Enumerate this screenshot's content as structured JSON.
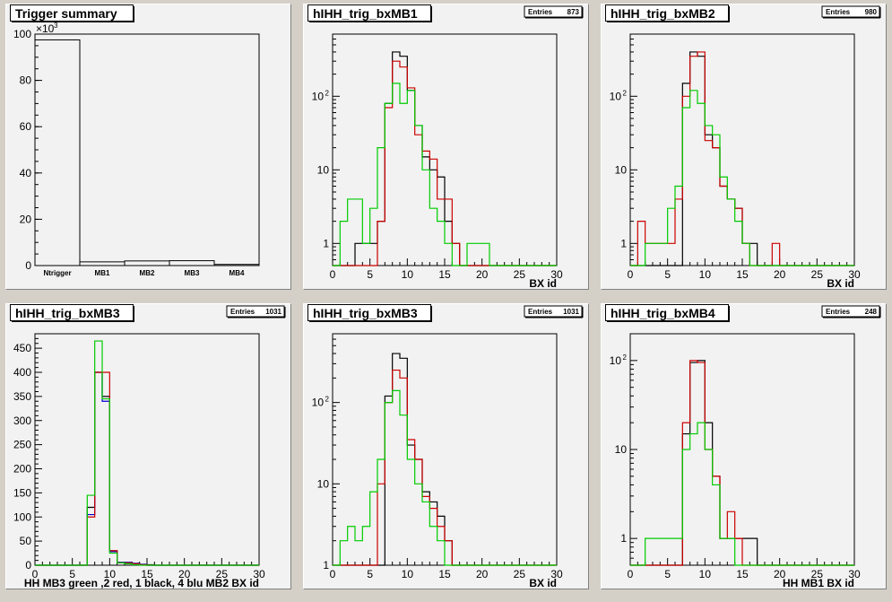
{
  "colors": {
    "black": "#000000",
    "red": "#cc0000",
    "green": "#00cc00",
    "blue": "#0000cc"
  },
  "chart_data": [
    {
      "id": "p1",
      "type": "bar",
      "title": "Trigger summary",
      "exponent_label": "×10",
      "exponent_power": "3",
      "categories": [
        "Ntrigger",
        "MB1",
        "MB2",
        "MB3",
        "MB4"
      ],
      "values": [
        97.5,
        1.6,
        2.0,
        2.1,
        0.5
      ],
      "ylim": [
        0,
        100
      ],
      "yticks": [
        0,
        20,
        40,
        60,
        80,
        100
      ],
      "xlabel": ""
    },
    {
      "id": "p2",
      "type": "line",
      "title": "hIHH_trig_bxMB1",
      "stats": {
        "label": "Entries",
        "value": "873"
      },
      "log_y": true,
      "xlim": [
        0,
        30
      ],
      "ylim": [
        0.5,
        700
      ],
      "xticks": [
        0,
        5,
        10,
        15,
        20,
        25,
        30
      ],
      "yticks": [
        {
          "v": 1,
          "t": "1"
        },
        {
          "v": 10,
          "t": "10"
        },
        {
          "v": 100,
          "t": "10",
          "sup": "2"
        }
      ],
      "xlabel": "BX id",
      "series": [
        {
          "color": "black",
          "values": [
            0,
            0,
            0,
            1,
            1,
            1,
            2,
            80,
            400,
            350,
            120,
            40,
            15,
            10,
            8,
            2,
            1,
            0,
            0,
            0,
            0,
            0,
            0,
            0,
            0,
            0,
            0,
            0,
            0,
            0
          ]
        },
        {
          "color": "red",
          "values": [
            0,
            0,
            0,
            0,
            0,
            0,
            2,
            70,
            300,
            250,
            130,
            30,
            18,
            14,
            4,
            4,
            1,
            0,
            0,
            0,
            0,
            0,
            0,
            0,
            0,
            0,
            0,
            0,
            0,
            0
          ]
        },
        {
          "color": "green",
          "values": [
            0,
            2,
            4,
            4,
            1,
            3,
            20,
            80,
            150,
            80,
            120,
            40,
            10,
            3,
            2,
            1,
            0,
            0,
            1,
            1,
            1,
            0,
            0,
            0,
            0,
            0,
            0,
            0,
            0,
            0
          ]
        }
      ]
    },
    {
      "id": "p3",
      "type": "line",
      "title": "hIHH_trig_bxMB2",
      "stats": {
        "label": "Entries",
        "value": "980"
      },
      "log_y": true,
      "xlim": [
        0,
        30
      ],
      "ylim": [
        0.5,
        700
      ],
      "xticks": [
        0,
        5,
        10,
        15,
        20,
        25,
        30
      ],
      "yticks": [
        {
          "v": 1,
          "t": "1"
        },
        {
          "v": 10,
          "t": "10"
        },
        {
          "v": 100,
          "t": "10",
          "sup": "2"
        }
      ],
      "xlabel": "BX id",
      "series": [
        {
          "color": "black",
          "values": [
            0,
            0,
            0,
            0,
            0,
            0,
            0,
            150,
            400,
            350,
            30,
            20,
            6,
            4,
            3,
            1,
            1,
            0,
            0,
            0,
            0,
            0,
            0,
            0,
            0,
            0,
            0,
            0,
            0,
            0
          ]
        },
        {
          "color": "red",
          "values": [
            0,
            2,
            1,
            1,
            1,
            1,
            4,
            100,
            350,
            400,
            25,
            20,
            6,
            4,
            3,
            1,
            0,
            0,
            0,
            1,
            0,
            0,
            0,
            0,
            0,
            0,
            0,
            0,
            0,
            0
          ]
        },
        {
          "color": "green",
          "values": [
            0,
            0,
            1,
            1,
            1,
            3,
            6,
            70,
            120,
            80,
            40,
            30,
            8,
            4,
            2,
            1,
            0,
            0,
            0,
            0,
            0,
            0,
            0,
            0,
            0,
            0,
            0,
            0,
            0,
            0
          ]
        }
      ]
    },
    {
      "id": "p4",
      "type": "line",
      "title": "hIHH_trig_bxMB3",
      "stats": {
        "label": "Entries",
        "value": "1031"
      },
      "log_y": false,
      "xlim": [
        0,
        30
      ],
      "ylim": [
        0,
        480
      ],
      "xticks": [
        0,
        5,
        10,
        15,
        20,
        25,
        30
      ],
      "yticks": [
        {
          "v": 0,
          "t": "0"
        },
        {
          "v": 50,
          "t": "50"
        },
        {
          "v": 100,
          "t": "100"
        },
        {
          "v": 150,
          "t": "150"
        },
        {
          "v": 200,
          "t": "200"
        },
        {
          "v": 250,
          "t": "250"
        },
        {
          "v": 300,
          "t": "300"
        },
        {
          "v": 350,
          "t": "350"
        },
        {
          "v": 400,
          "t": "400"
        },
        {
          "v": 450,
          "t": "450"
        }
      ],
      "xlabel": "HH  MB3 green ,2 red, 1 black, 4 blu    MB2 BX id",
      "series": [
        {
          "color": "black",
          "values": [
            0,
            0,
            0,
            0,
            0,
            0,
            0,
            120,
            400,
            350,
            30,
            5,
            3,
            2,
            1,
            1,
            0,
            0,
            0,
            0,
            0,
            0,
            0,
            0,
            0,
            0,
            0,
            0,
            0,
            0
          ]
        },
        {
          "color": "blue",
          "values": [
            0,
            0,
            0,
            0,
            0,
            0,
            0,
            105,
            400,
            340,
            28,
            6,
            6,
            4,
            2,
            0,
            0,
            0,
            0,
            0,
            0,
            0,
            0,
            0,
            0,
            0,
            0,
            0,
            0,
            0
          ]
        },
        {
          "color": "red",
          "values": [
            0,
            0,
            0,
            0,
            0,
            0,
            0,
            100,
            400,
            400,
            30,
            5,
            5,
            3,
            1,
            0,
            0,
            0,
            0,
            0,
            0,
            0,
            0,
            0,
            0,
            0,
            0,
            0,
            0,
            0
          ]
        },
        {
          "color": "green",
          "values": [
            0,
            0,
            0,
            0,
            0,
            0,
            0,
            145,
            465,
            345,
            25,
            5,
            3,
            1,
            0,
            0,
            0,
            0,
            0,
            0,
            0,
            0,
            0,
            0,
            0,
            0,
            0,
            0,
            0,
            0
          ]
        }
      ]
    },
    {
      "id": "p5",
      "type": "line",
      "title": "hIHH_trig_bxMB3",
      "stats": {
        "label": "Entries",
        "value": "1031"
      },
      "log_y": true,
      "xlim": [
        0,
        30
      ],
      "ylim": [
        1,
        700
      ],
      "xticks": [
        0,
        5,
        10,
        15,
        20,
        25,
        30
      ],
      "yticks": [
        {
          "v": 1,
          "t": "1"
        },
        {
          "v": 10,
          "t": "10"
        },
        {
          "v": 100,
          "t": "10",
          "sup": "2"
        }
      ],
      "xlabel": "BX id",
      "series": [
        {
          "color": "black",
          "values": [
            0,
            0,
            0,
            0,
            0,
            0,
            0,
            120,
            400,
            350,
            30,
            20,
            8,
            6,
            4,
            2,
            0,
            0,
            0,
            0,
            0,
            0,
            0,
            0,
            0,
            0,
            0,
            0,
            0,
            0
          ]
        },
        {
          "color": "red",
          "values": [
            0,
            0,
            0,
            0,
            0,
            0,
            10,
            100,
            250,
            200,
            35,
            20,
            7,
            5,
            3,
            2,
            0,
            0,
            0,
            0,
            0,
            0,
            0,
            0,
            0,
            0,
            0,
            0,
            0,
            0
          ]
        },
        {
          "color": "green",
          "values": [
            0,
            2,
            3,
            2,
            3,
            8,
            20,
            100,
            140,
            70,
            20,
            10,
            6,
            3,
            2,
            1,
            0,
            0,
            0,
            0,
            0,
            0,
            0,
            0,
            0,
            0,
            0,
            0,
            0,
            0
          ]
        }
      ]
    },
    {
      "id": "p6",
      "type": "line",
      "title": "hIHH_trig_bxMB4",
      "stats": {
        "label": "Entries",
        "value": "248"
      },
      "log_y": true,
      "xlim": [
        0,
        30
      ],
      "ylim": [
        0.5,
        200
      ],
      "xticks": [
        0,
        5,
        10,
        15,
        20,
        25,
        30
      ],
      "yticks": [
        {
          "v": 1,
          "t": "1"
        },
        {
          "v": 10,
          "t": "10"
        },
        {
          "v": 100,
          "t": "10",
          "sup": "2"
        }
      ],
      "xlabel": "HH MB1 BX id",
      "series": [
        {
          "color": "black",
          "values": [
            0,
            0,
            0,
            0,
            0,
            0,
            0,
            15,
            95,
            100,
            20,
            5,
            1,
            1,
            1,
            1,
            1,
            0,
            0,
            0,
            0,
            0,
            0,
            0,
            0,
            0,
            0,
            0,
            0,
            0
          ]
        },
        {
          "color": "red",
          "values": [
            0,
            0,
            0,
            0,
            0,
            0,
            0,
            20,
            100,
            95,
            10,
            5,
            1,
            2,
            1,
            0,
            0,
            0,
            0,
            0,
            0,
            0,
            0,
            0,
            0,
            0,
            0,
            0,
            0,
            0
          ]
        },
        {
          "color": "green",
          "values": [
            0,
            0,
            1,
            1,
            1,
            1,
            1,
            10,
            15,
            20,
            10,
            4,
            1,
            1,
            0,
            0,
            0,
            0,
            0,
            0,
            0,
            0,
            0,
            0,
            0,
            0,
            0,
            0,
            0,
            0
          ]
        }
      ]
    }
  ]
}
